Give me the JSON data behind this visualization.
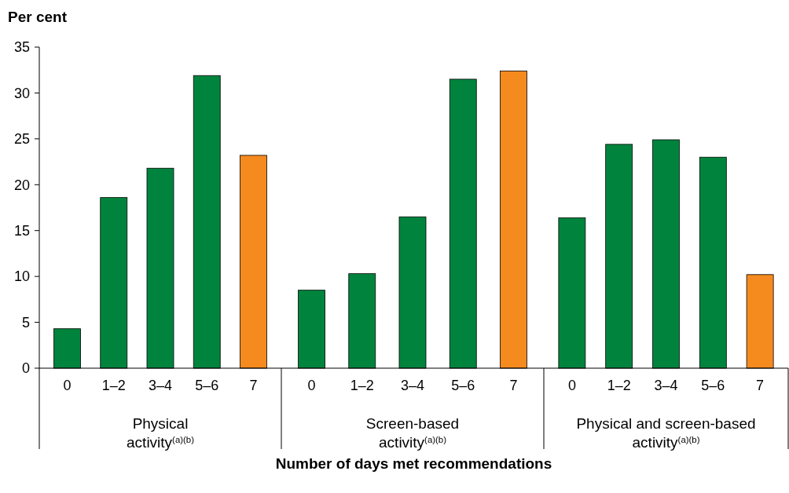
{
  "chart_data": {
    "type": "bar",
    "ylabel": "Per cent",
    "xlabel": "Number of days met recommendations",
    "categories": [
      "0",
      "1–2",
      "3–4",
      "5–6",
      "7",
      "0",
      "1–2",
      "3–4",
      "5–6",
      "7",
      "0",
      "1–2",
      "3–4",
      "5–6",
      "7"
    ],
    "values": [
      4.3,
      18.6,
      21.8,
      31.9,
      23.2,
      8.5,
      10.3,
      16.5,
      31.5,
      32.4,
      16.4,
      24.4,
      24.9,
      23.0,
      10.2
    ],
    "colors": [
      "#00843d",
      "#00843d",
      "#00843d",
      "#00843d",
      "#f58a1f",
      "#00843d",
      "#00843d",
      "#00843d",
      "#00843d",
      "#f58a1f",
      "#00843d",
      "#00843d",
      "#00843d",
      "#00843d",
      "#f58a1f"
    ],
    "ylim": [
      0,
      35
    ],
    "yticks": [
      0,
      5,
      10,
      15,
      20,
      25,
      30,
      35
    ],
    "grid": false,
    "annotations": [
      "Physical\nactivity$^{(a)(b)}$",
      "Screen-based\nactivity$^{(a)(b)}$",
      "Physical and screen-based\nactivity$^{(a)(b)}$"
    ]
  }
}
